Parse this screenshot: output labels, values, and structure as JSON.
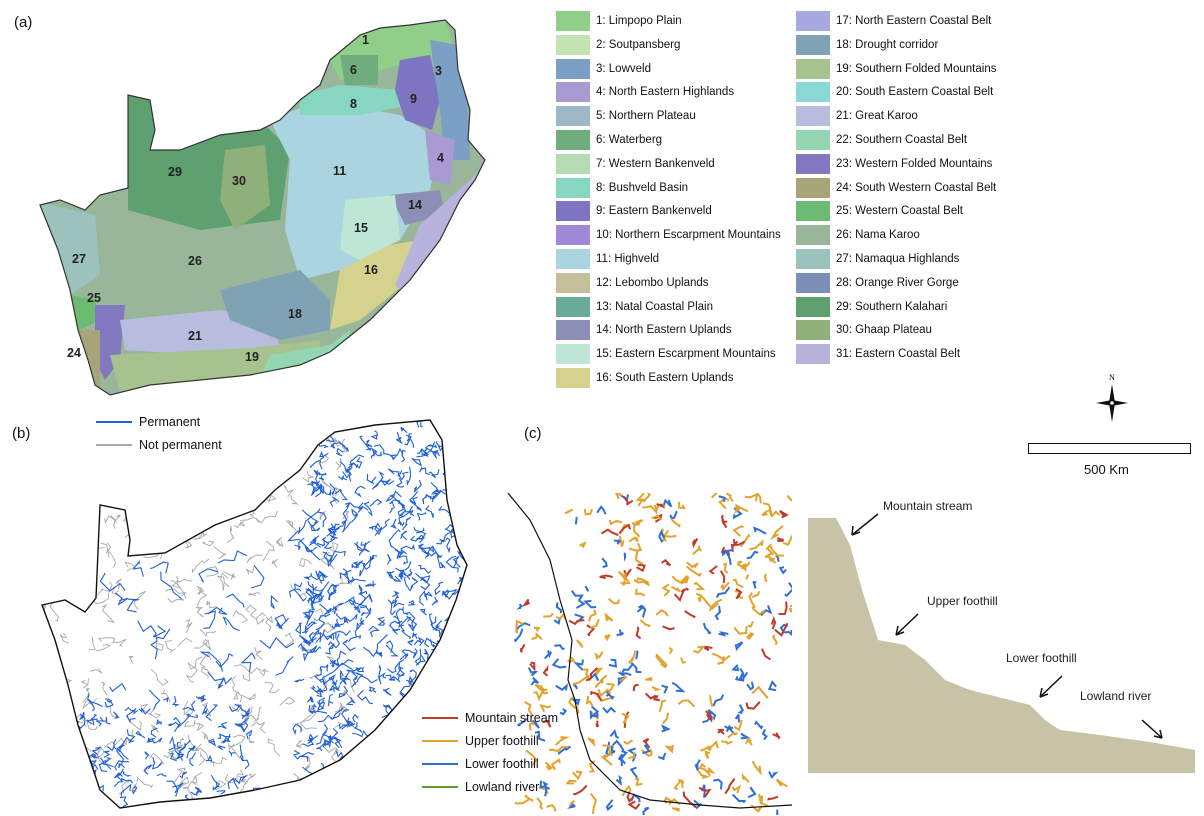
{
  "panels": {
    "a": "(a)",
    "b": "(b)",
    "c": "(c)"
  },
  "colors": {
    "permanent": "#1f5fd8",
    "not_permanent": "#a8a8a8",
    "mountain_stream": "#c0392b",
    "upper_foothill": "#e3a22c",
    "lower_foothill": "#2e6fd6",
    "lowland_river": "#6a9a2a",
    "profile_fill": "#c8c3a6"
  },
  "map_a": {
    "region_labels": [
      "1",
      "3",
      "4",
      "6",
      "8",
      "9",
      "11",
      "14",
      "15",
      "16",
      "18",
      "19",
      "21",
      "24",
      "25",
      "26",
      "27",
      "29",
      "30"
    ]
  },
  "legend_a": [
    {
      "label": "1: Limpopo Plain",
      "color": "#8fcf8a"
    },
    {
      "label": "2: Soutpansberg",
      "color": "#c3e3b0"
    },
    {
      "label": "3: Lowveld",
      "color": "#7c9fc6"
    },
    {
      "label": "4: North Eastern Highlands",
      "color": "#a99ad1"
    },
    {
      "label": "5: Northern Plateau",
      "color": "#9fb8c8"
    },
    {
      "label": "6: Waterberg",
      "color": "#6fad7e"
    },
    {
      "label": "7: Western Bankenveld",
      "color": "#b5dbb3"
    },
    {
      "label": "8: Bushveld Basin",
      "color": "#86d6c2"
    },
    {
      "label": "9: Eastern Bankenveld",
      "color": "#7d74c2"
    },
    {
      "label": "10: Northern Escarpment Mountains",
      "color": "#a08ad8"
    },
    {
      "label": "11: Highveld",
      "color": "#aad4e0"
    },
    {
      "label": "12: Lebombo Uplands",
      "color": "#c4bf9a"
    },
    {
      "label": "13: Natal Coastal Plain",
      "color": "#6aaa98"
    },
    {
      "label": "14: North Eastern Uplands",
      "color": "#8b8fb5"
    },
    {
      "label": "15: Eastern Escarpment Mountains",
      "color": "#bde6d6"
    },
    {
      "label": "16: South Eastern Uplands",
      "color": "#d4d28c"
    },
    {
      "label": "17: North Eastern Coastal Belt",
      "color": "#a7a8e0"
    },
    {
      "label": "18: Drought corridor",
      "color": "#7fa3b5"
    },
    {
      "label": "19: Southern Folded Mountains",
      "color": "#a6c28f"
    },
    {
      "label": "20: South Eastern Coastal Belt",
      "color": "#8ad8d6"
    },
    {
      "label": "21: Great Karoo",
      "color": "#b8bde0"
    },
    {
      "label": "22: Southern Coastal Belt",
      "color": "#94d6b3"
    },
    {
      "label": "23: Western Folded Mountains",
      "color": "#8278bf"
    },
    {
      "label": "24: South Western Coastal Belt",
      "color": "#a8a47a"
    },
    {
      "label": "25: Western Coastal Belt",
      "color": "#6dbb73"
    },
    {
      "label": "26: Nama Karoo",
      "color": "#99b59a"
    },
    {
      "label": "27: Namaqua Highlands",
      "color": "#9cc2bd"
    },
    {
      "label": "28: Orange River Gorge",
      "color": "#7b8fb8"
    },
    {
      "label": "29: Southern Kalahari",
      "color": "#5fa070"
    },
    {
      "label": "30: Ghaap Plateau",
      "color": "#8fb07a"
    },
    {
      "label": "31: Eastern Coastal Belt",
      "color": "#b8b3dc"
    }
  ],
  "legend_b": [
    {
      "label": "Permanent",
      "color": "#1f5fd8"
    },
    {
      "label": "Not permanent",
      "color": "#a8a8a8"
    }
  ],
  "legend_c": [
    {
      "label": "Mountain stream",
      "color": "#c0392b"
    },
    {
      "label": "Upper foothill",
      "color": "#e3a22c"
    },
    {
      "label": "Lower foothill",
      "color": "#2e6fd6"
    },
    {
      "label": "Lowland river",
      "color": "#6a9a2a"
    }
  ],
  "scale": {
    "label": "500 Km"
  },
  "north": {
    "label": "N"
  },
  "profile": {
    "labels": [
      "Mountain stream",
      "Upper foothill",
      "Lower foothill",
      "Lowland river"
    ]
  }
}
